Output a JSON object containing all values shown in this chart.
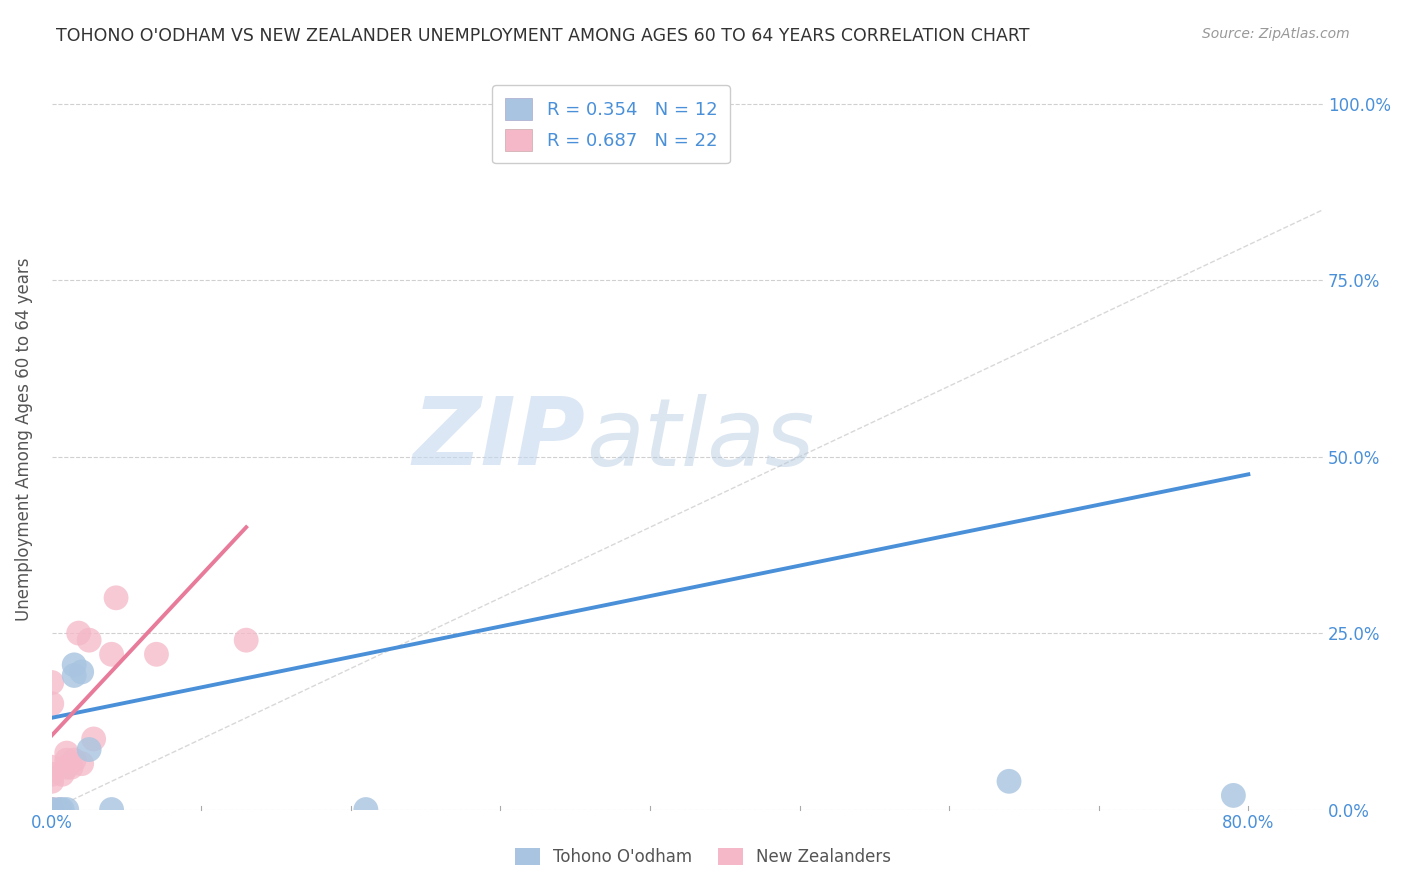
{
  "title": "TOHONO O'ODHAM VS NEW ZEALANDER UNEMPLOYMENT AMONG AGES 60 TO 64 YEARS CORRELATION CHART",
  "source": "Source: ZipAtlas.com",
  "ylabel": "Unemployment Among Ages 60 to 64 years",
  "xlim": [
    0,
    0.85
  ],
  "ylim": [
    0,
    1.05
  ],
  "yticks": [
    0.0,
    0.25,
    0.5,
    0.75,
    1.0
  ],
  "yticklabels": [
    "0.0%",
    "25.0%",
    "50.0%",
    "75.0%",
    "100.0%"
  ],
  "blue_R": 0.354,
  "blue_N": 12,
  "pink_R": 0.687,
  "pink_N": 22,
  "blue_color": "#a8c4e0",
  "pink_color": "#f4b8c8",
  "blue_line_color": "#4a90d9",
  "pink_line_color": "#e87a9a",
  "diagonal_color": "#c8c8c8",
  "watermark_zip": "ZIP",
  "watermark_atlas": "atlas",
  "blue_points_x": [
    0.0,
    0.005,
    0.007,
    0.01,
    0.015,
    0.015,
    0.02,
    0.025,
    0.04,
    0.21,
    0.64,
    0.79
  ],
  "blue_points_y": [
    0.0,
    0.0,
    0.0,
    0.0,
    0.19,
    0.205,
    0.195,
    0.085,
    0.0,
    0.0,
    0.04,
    0.02
  ],
  "pink_points_x": [
    0.0,
    0.0,
    0.0,
    0.0,
    0.0,
    0.0,
    0.0,
    0.005,
    0.007,
    0.01,
    0.01,
    0.01,
    0.013,
    0.015,
    0.018,
    0.02,
    0.025,
    0.028,
    0.04,
    0.043,
    0.07,
    0.13
  ],
  "pink_points_y": [
    0.0,
    0.0,
    0.04,
    0.05,
    0.06,
    0.15,
    0.18,
    0.0,
    0.05,
    0.06,
    0.07,
    0.08,
    0.06,
    0.07,
    0.25,
    0.065,
    0.24,
    0.1,
    0.22,
    0.3,
    0.22,
    0.24
  ],
  "blue_trend_x": [
    0.0,
    0.8
  ],
  "blue_trend_y": [
    0.13,
    0.475
  ],
  "pink_trend_x": [
    0.0,
    0.13
  ],
  "pink_trend_y": [
    0.105,
    0.4
  ],
  "legend_label_blue": "Tohono O'odham",
  "legend_label_pink": "New Zealanders"
}
